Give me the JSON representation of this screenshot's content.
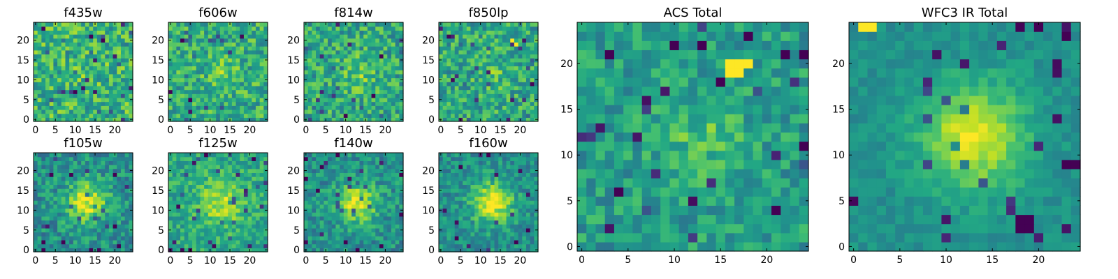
{
  "chart_data": [
    {
      "type": "heatmap",
      "title": "f435w",
      "grid": [
        25,
        25
      ],
      "xticks": [
        0,
        5,
        10,
        15,
        20
      ],
      "yticks": [
        0,
        5,
        10,
        15,
        20
      ],
      "xlim": [
        -0.5,
        24.5
      ],
      "ylim": [
        -0.5,
        24.5
      ],
      "seed": 11,
      "background": 0.65,
      "sigma_blob": 3.0,
      "amplitude": 0.05,
      "noise": 0.45,
      "hot": [],
      "cold": []
    },
    {
      "type": "heatmap",
      "title": "f606w",
      "grid": [
        25,
        25
      ],
      "xticks": [
        0,
        5,
        10,
        15,
        20
      ],
      "yticks": [
        0,
        5,
        10,
        15,
        20
      ],
      "xlim": [
        -0.5,
        24.5
      ],
      "ylim": [
        -0.5,
        24.5
      ],
      "seed": 22,
      "background": 0.62,
      "sigma_blob": 3.0,
      "amplitude": 0.12,
      "noise": 0.42,
      "hot": [],
      "cold": []
    },
    {
      "type": "heatmap",
      "title": "f814w",
      "grid": [
        25,
        25
      ],
      "xticks": [
        0,
        5,
        10,
        15,
        20
      ],
      "yticks": [
        0,
        5,
        10,
        15,
        20
      ],
      "xlim": [
        -0.5,
        24.5
      ],
      "ylim": [
        -0.5,
        24.5
      ],
      "seed": 33,
      "background": 0.6,
      "sigma_blob": 3.0,
      "amplitude": 0.15,
      "noise": 0.42,
      "hot": [],
      "cold": []
    },
    {
      "type": "heatmap",
      "title": "f850lp",
      "grid": [
        25,
        25
      ],
      "xticks": [
        0,
        5,
        10,
        15,
        20
      ],
      "yticks": [
        0,
        5,
        10,
        15,
        20
      ],
      "xlim": [
        -0.5,
        24.5
      ],
      "ylim": [
        -0.5,
        24.5
      ],
      "seed": 44,
      "background": 0.6,
      "sigma_blob": 3.0,
      "amplitude": 0.1,
      "noise": 0.42,
      "hot": [
        [
          18,
          20
        ],
        [
          19,
          19
        ]
      ],
      "cold": []
    },
    {
      "type": "heatmap",
      "title": "f105w",
      "grid": [
        25,
        25
      ],
      "xticks": [
        0,
        5,
        10,
        15,
        20
      ],
      "yticks": [
        0,
        5,
        10,
        15,
        20
      ],
      "xlim": [
        -0.5,
        24.5
      ],
      "ylim": [
        -0.5,
        24.5
      ],
      "seed": 55,
      "background": 0.5,
      "sigma_blob": 3.5,
      "amplitude": 0.45,
      "noise": 0.35,
      "hot": [],
      "cold": [
        [
          2,
          0
        ],
        [
          21,
          1
        ]
      ]
    },
    {
      "type": "heatmap",
      "title": "f125w",
      "grid": [
        25,
        25
      ],
      "xticks": [
        0,
        5,
        10,
        15,
        20
      ],
      "yticks": [
        0,
        5,
        10,
        15,
        20
      ],
      "xlim": [
        -0.5,
        24.5
      ],
      "ylim": [
        -0.5,
        24.5
      ],
      "seed": 66,
      "background": 0.6,
      "sigma_blob": 4.0,
      "amplitude": 0.3,
      "noise": 0.3,
      "hot": [],
      "cold": [
        [
          9,
          24
        ],
        [
          21,
          23
        ]
      ]
    },
    {
      "type": "heatmap",
      "title": "f140w",
      "grid": [
        25,
        25
      ],
      "xticks": [
        0,
        5,
        10,
        15,
        20
      ],
      "yticks": [
        0,
        5,
        10,
        15,
        20
      ],
      "xlim": [
        -0.5,
        24.5
      ],
      "ylim": [
        -0.5,
        24.5
      ],
      "seed": 77,
      "background": 0.5,
      "sigma_blob": 3.5,
      "amplitude": 0.45,
      "noise": 0.33,
      "hot": [],
      "cold": [
        [
          19,
          1
        ],
        [
          4,
          21
        ]
      ]
    },
    {
      "type": "heatmap",
      "title": "f160w",
      "grid": [
        25,
        25
      ],
      "xticks": [
        0,
        5,
        10,
        15,
        20
      ],
      "yticks": [
        0,
        5,
        10,
        15,
        20
      ],
      "xlim": [
        -0.5,
        24.5
      ],
      "ylim": [
        -0.5,
        24.5
      ],
      "seed": 88,
      "background": 0.5,
      "sigma_blob": 3.5,
      "amplitude": 0.5,
      "noise": 0.3,
      "hot": [],
      "cold": [
        [
          19,
          2
        ],
        [
          5,
          21
        ]
      ]
    },
    {
      "type": "heatmap",
      "title": "ACS Total",
      "grid": [
        25,
        25
      ],
      "xticks": [
        0,
        5,
        10,
        15,
        20
      ],
      "yticks": [
        0,
        5,
        10,
        15,
        20
      ],
      "xlim": [
        -0.5,
        24.5
      ],
      "ylim": [
        -0.5,
        24.5
      ],
      "seed": 99,
      "background": 0.55,
      "sigma_blob": 3.5,
      "amplitude": 0.15,
      "noise": 0.32,
      "hot": [
        [
          16,
          20
        ],
        [
          17,
          20
        ],
        [
          16,
          19
        ],
        [
          17,
          19
        ],
        [
          18,
          20
        ]
      ],
      "cold": [
        [
          4,
          6
        ],
        [
          21,
          4
        ],
        [
          3,
          21
        ],
        [
          10,
          22
        ],
        [
          13,
          22
        ],
        [
          15,
          18
        ],
        [
          18,
          23
        ],
        [
          24,
          21
        ]
      ]
    },
    {
      "type": "heatmap",
      "title": "WFC3 IR Total",
      "grid": [
        25,
        25
      ],
      "xticks": [
        0,
        5,
        10,
        15,
        20
      ],
      "yticks": [
        0,
        5,
        10,
        15,
        20
      ],
      "xlim": [
        -0.5,
        24.5
      ],
      "ylim": [
        -0.5,
        24.5
      ],
      "seed": 111,
      "background": 0.5,
      "sigma_blob": 4.0,
      "amplitude": 0.45,
      "noise": 0.15,
      "hot": [
        [
          1,
          24
        ],
        [
          2,
          24
        ]
      ],
      "cold": [
        [
          18,
          2
        ],
        [
          19,
          2
        ],
        [
          18,
          3
        ],
        [
          19,
          3
        ],
        [
          23,
          9
        ],
        [
          24,
          9
        ],
        [
          20,
          24
        ],
        [
          23,
          23
        ]
      ]
    }
  ]
}
